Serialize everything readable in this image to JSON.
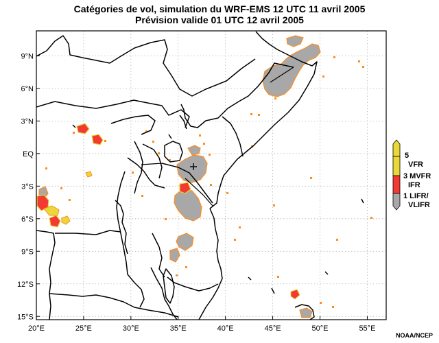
{
  "title_line1": "Catégories de vol, simulation du WRF-EMS 12 UTC 11 avril 2005",
  "title_line2": "Prévision valide 01 UTC 12 avril 2005",
  "credit": "NOAA/NCEP",
  "map": {
    "lon_range": [
      20,
      57
    ],
    "lat_range": [
      -15.3,
      11.3
    ],
    "x_ticks": [
      {
        "value": 20,
        "label": "20°E"
      },
      {
        "value": 25,
        "label": "25°E"
      },
      {
        "value": 30,
        "label": "30°E"
      },
      {
        "value": 35,
        "label": "35°E"
      },
      {
        "value": 40,
        "label": "40°E"
      },
      {
        "value": 45,
        "label": "45°E"
      },
      {
        "value": 50,
        "label": "50°E"
      },
      {
        "value": 55,
        "label": "55°E"
      }
    ],
    "y_ticks": [
      {
        "value": 9,
        "label": "9°N"
      },
      {
        "value": 6,
        "label": "6°N"
      },
      {
        "value": 3,
        "label": "3°N"
      },
      {
        "value": 0,
        "label": "EQ"
      },
      {
        "value": -3,
        "label": "3°S"
      },
      {
        "value": -6,
        "label": "6°S"
      },
      {
        "value": -9,
        "label": "9°S"
      },
      {
        "value": -12,
        "label": "12°S"
      },
      {
        "value": -15,
        "label": "15°S"
      }
    ],
    "grid": "dotted"
  },
  "legend": {
    "levels": [
      {
        "label": "5"
      },
      {
        "label": "VFR"
      },
      {
        "label": "3 MVFR"
      },
      {
        "label": "IFR"
      },
      {
        "label": "1 LIFR/"
      },
      {
        "label": "VLIFR"
      }
    ],
    "colors": {
      "vfr": "#e8d83a",
      "ifr": "#f23a33",
      "lifr": "#a8a8a8",
      "edge": "#ff8c1a"
    }
  }
}
